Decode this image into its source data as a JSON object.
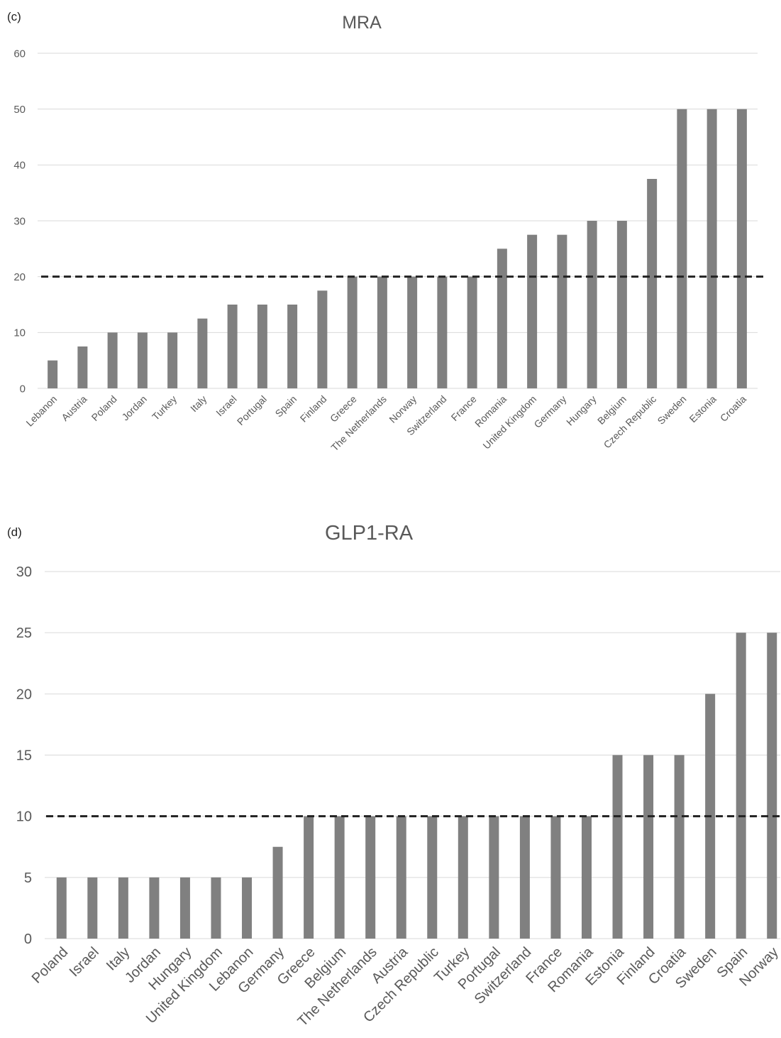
{
  "chart_data": [
    {
      "type": "bar",
      "panel_label": "(c)",
      "title": "MRA",
      "ylim": [
        0,
        60
      ],
      "yticks": [
        "0",
        "10",
        "20",
        "30",
        "40",
        "50",
        "60"
      ],
      "reference_line": 20,
      "grid": true,
      "bar_color": "#808080",
      "categories": [
        "Lebanon",
        "Austria",
        "Poland",
        "Jordan",
        "Turkey",
        "Italy",
        "Israel",
        "Portugal",
        "Spain",
        "Finland",
        "Greece",
        "The Netherlands",
        "Norway",
        "Switzerland",
        "France",
        "Romania",
        "United Kingdom",
        "Germany",
        "Hungary",
        "Belgium",
        "Czech Republic",
        "Sweden",
        "Estonia",
        "Croatia"
      ],
      "values": [
        5,
        7.5,
        10,
        10,
        10,
        12.5,
        15,
        15,
        15,
        17.5,
        20,
        20,
        20,
        20,
        20,
        25,
        27.5,
        27.5,
        30,
        30,
        37.5,
        50,
        50,
        50
      ]
    },
    {
      "type": "bar",
      "panel_label": "(d)",
      "title": "GLP1-RA",
      "ylim": [
        0,
        30
      ],
      "yticks": [
        "0",
        "5",
        "10",
        "15",
        "20",
        "25",
        "30"
      ],
      "reference_line": 10,
      "grid": true,
      "bar_color": "#808080",
      "categories": [
        "Poland",
        "Israel",
        "Italy",
        "Jordan",
        "Hungary",
        "United Kingdom",
        "Lebanon",
        "Germany",
        "Greece",
        "Belgium",
        "The Netherlands",
        "Austria",
        "Czech Republic",
        "Turkey",
        "Portugal",
        "Switzerland",
        "France",
        "Romania",
        "Estonia",
        "Finland",
        "Croatia",
        "Sweden",
        "Spain",
        "Norway"
      ],
      "values": [
        5,
        5,
        5,
        5,
        5,
        5,
        5,
        7.5,
        10,
        10,
        10,
        10,
        10,
        10,
        10,
        10,
        10,
        10,
        15,
        15,
        15,
        20,
        25,
        25
      ]
    }
  ]
}
